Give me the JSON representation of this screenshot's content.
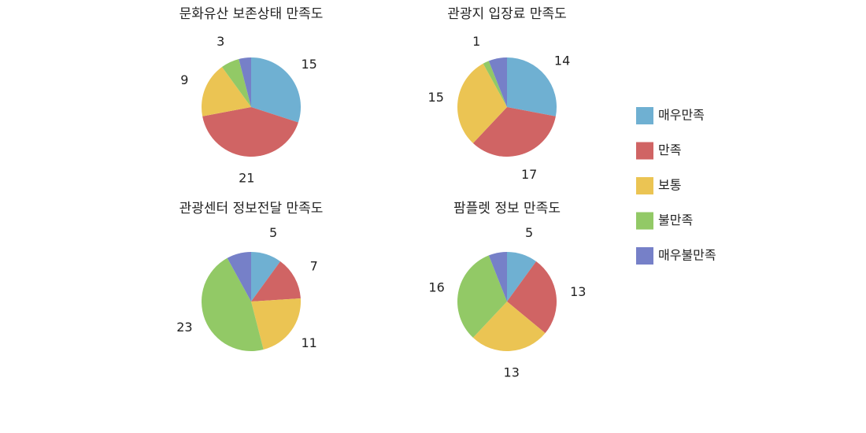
{
  "legend": {
    "labels": [
      "매우만족",
      "만족",
      "보통",
      "불만족",
      "매우불만족"
    ],
    "colors": [
      "#6fb0d2",
      "#d06464",
      "#ebc453",
      "#92c966",
      "#7680c8"
    ]
  },
  "chart_data": [
    {
      "type": "pie",
      "title": "문화유산 보존상태 만족도",
      "values": [
        15,
        21,
        9,
        3,
        2
      ],
      "value_labels": [
        "15",
        "21",
        "9",
        "3",
        null
      ]
    },
    {
      "type": "pie",
      "title": "관광지 입장료 만족도",
      "values": [
        14,
        17,
        15,
        1,
        3
      ],
      "value_labels": [
        "14",
        "17",
        "15",
        "1",
        null
      ]
    },
    {
      "type": "pie",
      "title": "관광센터 정보전달 만족도",
      "values": [
        5,
        7,
        11,
        23,
        4
      ],
      "value_labels": [
        "5",
        "7",
        "11",
        "23",
        null
      ]
    },
    {
      "type": "pie",
      "title": "팜플렛 정보 만족도",
      "values": [
        5,
        13,
        13,
        16,
        3
      ],
      "value_labels": [
        "5",
        "13",
        "13",
        "16",
        null
      ]
    }
  ]
}
